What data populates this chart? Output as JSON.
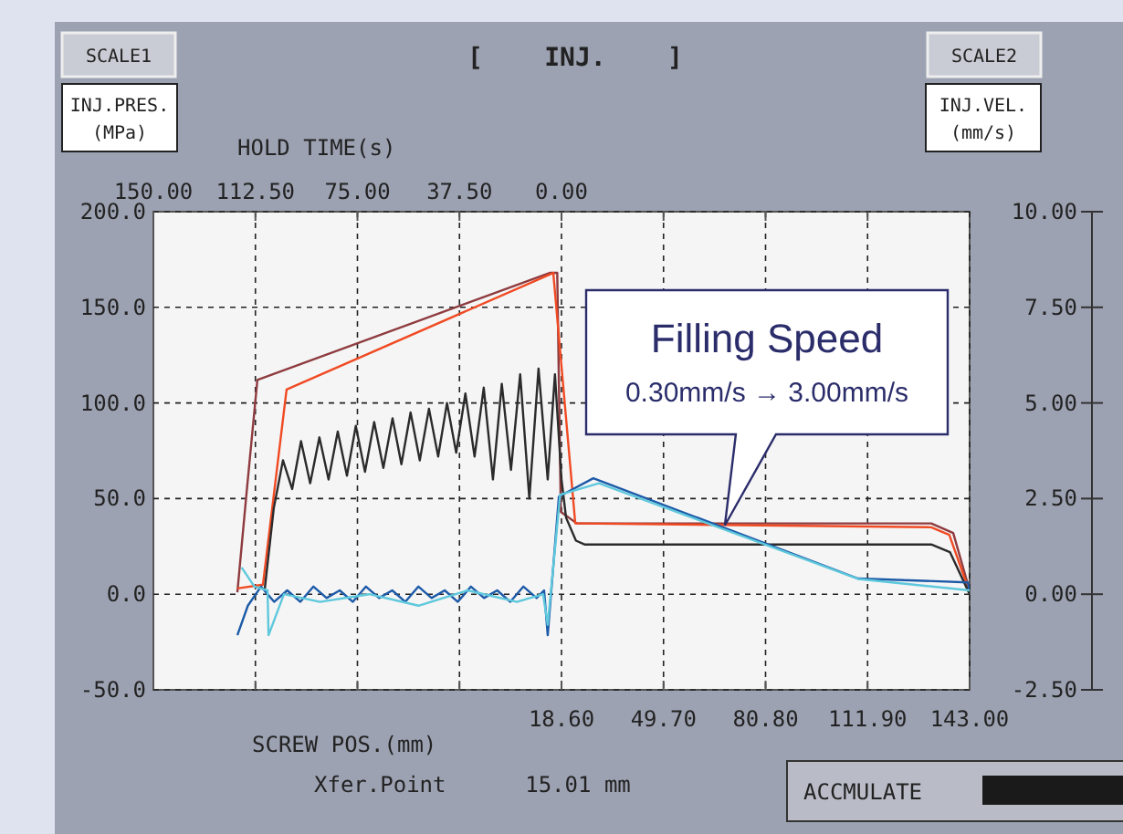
{
  "chart_data": {
    "type": "line",
    "title": "[    INJ.    ]",
    "xlabel": "SCREW POS.(mm)",
    "x2label": "HOLD TIME(s)",
    "ylabel": "INJ.PRES.\n(MPa)",
    "y2label": "INJ.VEL.\n(mm/s)",
    "annotations": [
      "SCALE1",
      "SCALE2",
      "Xfer.Point      15.01 mm",
      "ACCMULATE",
      {
        "text": "Filling Speed\n0.30mm/s → 3.00mm/s",
        "x": 68.4,
        "y": 36
      }
    ],
    "xlim": [
      -105.8,
      143
    ],
    "xticks": [
      {
        "value": -74.7,
        "label": null
      },
      {
        "value": -43.6,
        "label": null
      },
      {
        "value": -12.5,
        "label": null
      },
      {
        "value": 18.6,
        "label": "18.60"
      },
      {
        "value": 49.7,
        "label": "49.70"
      },
      {
        "value": 80.8,
        "label": "80.80"
      },
      {
        "value": 111.9,
        "label": "111.90"
      },
      {
        "value": 143,
        "label": "143.00"
      }
    ],
    "x2lim": [
      150,
      -150
    ],
    "x2ticks": [
      {
        "value": 150,
        "label": "150.00"
      },
      {
        "value": 112.5,
        "label": "112.50"
      },
      {
        "value": 75,
        "label": "75.00"
      },
      {
        "value": 37.5,
        "label": "37.50"
      },
      {
        "value": 0,
        "label": "0.00"
      },
      {
        "value": -37.5,
        "label": null
      },
      {
        "value": -75,
        "label": null
      },
      {
        "value": -112.5,
        "label": null
      }
    ],
    "ylim": [
      -50,
      200
    ],
    "yticks": [
      {
        "value": -50,
        "label": "-50.0"
      },
      {
        "value": 0,
        "label": "0.0"
      },
      {
        "value": 50,
        "label": "50.0"
      },
      {
        "value": 100,
        "label": "100.0"
      },
      {
        "value": 150,
        "label": "150.0"
      },
      {
        "value": 200,
        "label": "200.0"
      }
    ],
    "y2lim": [
      -2.5,
      10
    ],
    "y2ticks": [
      {
        "value": -2.5,
        "label": "-2.50"
      },
      {
        "value": 0,
        "label": "0.00"
      },
      {
        "value": 2.5,
        "label": "2.50"
      },
      {
        "value": 5,
        "label": "5.00"
      },
      {
        "value": 7.5,
        "label": "7.50"
      },
      {
        "value": 10,
        "label": "10.00"
      }
    ],
    "grid": true,
    "marker": "none",
    "line_style": "solid",
    "series": [
      {
        "color": "#8e3b3f",
        "x": [
          -80.2,
          -77.4,
          -74.1,
          15,
          17.3,
          18.4,
          23.3,
          131.3,
          138,
          143
        ],
        "values": [
          1,
          53,
          112,
          168,
          168,
          43,
          37,
          37,
          32,
          2
        ]
      },
      {
        "color": "#f04a23",
        "x": [
          -80.2,
          -72.4,
          -65.2,
          16.1,
          22.8,
          23.9,
          131.3,
          136.8,
          143
        ],
        "values": [
          3,
          5,
          107,
          168,
          37,
          37,
          35,
          31,
          1
        ]
      },
      {
        "color": "#2b2b2b",
        "x": [
          -71.9,
          -69.1,
          -66.3,
          -63.5,
          -60.8,
          -58,
          -55.2,
          -52.4,
          -49.6,
          -46.8,
          -44.1,
          -41.3,
          -38.5,
          -35.7,
          -32.9,
          -30.2,
          -27.4,
          -24.6,
          -21.8,
          -19,
          -16.3,
          -13.5,
          -10.7,
          -7.9,
          -5.1,
          -2.3,
          0.4,
          3.2,
          6,
          8.8,
          11.6,
          14.4,
          16.6,
          18.6,
          20,
          23,
          25.6,
          131.3,
          137,
          143
        ],
        "values": [
          2,
          45,
          70,
          55,
          80,
          58,
          82,
          60,
          85,
          62,
          88,
          64,
          90,
          66,
          92,
          68,
          95,
          70,
          97,
          72,
          100,
          74,
          105,
          72,
          108,
          60,
          110,
          65,
          115,
          50,
          118,
          60,
          115,
          60,
          40,
          28,
          26,
          26,
          22,
          0
        ]
      },
      {
        "color": "#1c5aa8",
        "axis": "y2",
        "x": [
          -80.2,
          -77,
          -73,
          -69,
          -65,
          -61,
          -57,
          -53,
          -49,
          -45,
          -41,
          -37,
          -33,
          -29,
          -25,
          -21,
          -17,
          -13,
          -9,
          -5,
          -1,
          3,
          7,
          11,
          13.3,
          14.4,
          17.8,
          28.3,
          109,
          142.4,
          143
        ],
        "values": [
          -1.07,
          -0.3,
          0.2,
          -0.2,
          0.1,
          -0.2,
          0.2,
          -0.1,
          0.1,
          -0.2,
          0.2,
          -0.1,
          0.1,
          -0.2,
          0.2,
          -0.1,
          0.1,
          -0.2,
          0.2,
          -0.1,
          0.1,
          -0.2,
          0.2,
          -0.1,
          0.1,
          -1.07,
          2.55,
          3.03,
          0.41,
          0.31,
          0.1
        ]
      },
      {
        "color": "#5ec8dc",
        "axis": "y2",
        "x": [
          -78.9,
          -75,
          -71,
          -70.7,
          -66,
          -55,
          -40,
          -25,
          -10,
          5,
          13,
          14.4,
          18.2,
          30,
          109,
          143
        ],
        "values": [
          0.7,
          0.2,
          0.1,
          -1.07,
          0,
          -0.2,
          0,
          -0.3,
          0.1,
          -0.2,
          0,
          -0.8,
          2.6,
          2.9,
          0.4,
          0.1
        ]
      }
    ]
  }
}
